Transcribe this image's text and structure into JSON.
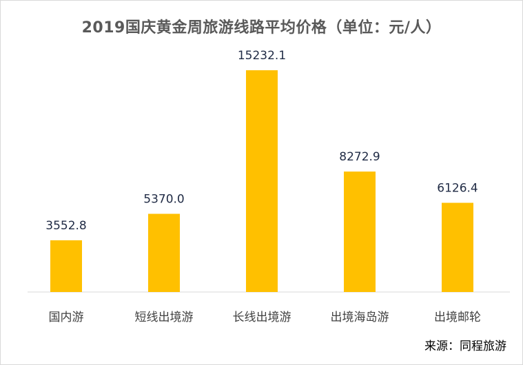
{
  "chart_data": {
    "type": "bar",
    "title": "2019国庆黄金周旅游线路平均价格（单位：元/人）",
    "categories": [
      "国内游",
      "短线出境游",
      "长线出境游",
      "出境海岛游",
      "出境邮轮"
    ],
    "values": [
      3552.8,
      5370.0,
      15232.1,
      8272.9,
      6126.4
    ],
    "value_labels": [
      "3552.8",
      "5370.0",
      "15232.1",
      "8272.9",
      "6126.4"
    ],
    "bar_color": "#FFC000",
    "grid": false,
    "legend": "none"
  },
  "source": "来源：同程旅游"
}
